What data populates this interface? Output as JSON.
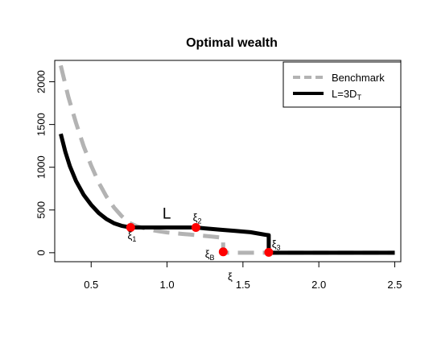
{
  "chart_data": {
    "type": "line",
    "title": "Optimal wealth",
    "xlabel": "",
    "ylabel": "",
    "xlim": [
      0.26,
      2.54
    ],
    "ylim": [
      -105,
      2250
    ],
    "x_ticks": [
      0.5,
      1.0,
      1.5,
      2.0,
      2.5
    ],
    "x_tick_labels": [
      "0.5",
      "1.0",
      "1.5",
      "2.0",
      "2.5"
    ],
    "y_ticks": [
      0,
      500,
      1000,
      1500,
      2000
    ],
    "y_tick_labels": [
      "0",
      "500",
      "1000",
      "1500",
      "2000"
    ],
    "grid": false,
    "legend": {
      "placement": "top-right",
      "entries": [
        {
          "label": "Benchmark",
          "color": "#b3b3b3",
          "style": "dashed"
        },
        {
          "label": "L=3D",
          "subscript": "T",
          "color": "#000000",
          "style": "solid"
        }
      ]
    },
    "series": [
      {
        "name": "Benchmark",
        "color": "#b3b3b3",
        "style": "dashed",
        "x": [
          0.3,
          0.35,
          0.4,
          0.45,
          0.5,
          0.55,
          0.6,
          0.65,
          0.7,
          0.75,
          0.8,
          0.85,
          0.9,
          0.95,
          1.0,
          1.05,
          1.1,
          1.15,
          1.2,
          1.25,
          1.3,
          1.37,
          1.37,
          1.45,
          1.55,
          1.65,
          1.68,
          1.8,
          2.0,
          2.2,
          2.4,
          2.5
        ],
        "y": [
          2190,
          1820,
          1520,
          1250,
          1020,
          820,
          660,
          530,
          430,
          350,
          310,
          285,
          265,
          250,
          238,
          228,
          220,
          212,
          204,
          196,
          188,
          175,
          0,
          0,
          0,
          0,
          0,
          0,
          0,
          0,
          0,
          0
        ]
      },
      {
        "name": "L=3D_T",
        "color": "#000000",
        "style": "solid",
        "x": [
          0.3,
          0.33,
          0.36,
          0.4,
          0.45,
          0.5,
          0.55,
          0.6,
          0.65,
          0.7,
          0.76,
          0.8,
          0.9,
          1.0,
          1.1,
          1.19,
          1.25,
          1.35,
          1.45,
          1.55,
          1.65,
          1.67,
          1.67,
          1.8,
          2.0,
          2.2,
          2.4,
          2.5
        ],
        "y": [
          1390,
          1180,
          1010,
          840,
          680,
          560,
          465,
          395,
          345,
          315,
          295,
          295,
          295,
          295,
          295,
          295,
          285,
          270,
          255,
          240,
          210,
          205,
          0,
          0,
          0,
          0,
          0,
          0
        ]
      }
    ],
    "points": [
      {
        "name": "xi-1",
        "x": 0.76,
        "y": 295,
        "color": "#ff0000"
      },
      {
        "name": "xi-2",
        "x": 1.19,
        "y": 295,
        "color": "#ff0000"
      },
      {
        "name": "xi-B",
        "x": 1.37,
        "y": 10,
        "color": "#ff0000"
      },
      {
        "name": "xi-3",
        "x": 1.67,
        "y": 5,
        "color": "#ff0000"
      }
    ],
    "annotations": [
      {
        "name": "xi-1-label",
        "text": "ξ",
        "sub": "1",
        "x": 0.74,
        "y": 160,
        "size": "small"
      },
      {
        "name": "xi-2-label",
        "text": "ξ",
        "sub": "2",
        "x": 1.17,
        "y": 370,
        "size": "small"
      },
      {
        "name": "xi-B-label",
        "text": "ξ",
        "sub": "B",
        "x": 1.25,
        "y": -60,
        "size": "small"
      },
      {
        "name": "xi-3-label",
        "text": "ξ",
        "sub": "3",
        "x": 1.69,
        "y": 60,
        "size": "small"
      },
      {
        "name": "xi-label",
        "text": "ξ",
        "sub": "",
        "x": 1.4,
        "y": -320,
        "size": "small"
      },
      {
        "name": "L-label",
        "text": "L",
        "sub": "",
        "x": 0.97,
        "y": 400,
        "size": "big"
      }
    ]
  }
}
